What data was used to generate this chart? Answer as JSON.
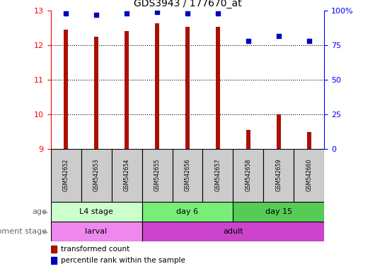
{
  "title": "GDS3943 / 177670_at",
  "samples": [
    "GSM542652",
    "GSM542653",
    "GSM542654",
    "GSM542655",
    "GSM542656",
    "GSM542657",
    "GSM542658",
    "GSM542659",
    "GSM542660"
  ],
  "transformed_counts": [
    12.45,
    12.25,
    12.42,
    12.63,
    12.53,
    12.53,
    9.55,
    10.0,
    9.48
  ],
  "percentile_ranks": [
    98,
    97,
    98,
    99,
    98,
    98,
    78,
    82,
    78
  ],
  "ylim_left": [
    9,
    13
  ],
  "ylim_right": [
    0,
    100
  ],
  "yticks_left": [
    9,
    10,
    11,
    12,
    13
  ],
  "yticks_right": [
    0,
    25,
    50,
    75,
    100
  ],
  "ytick_labels_right": [
    "0",
    "25",
    "50",
    "75",
    "100%"
  ],
  "bar_color": "#aa1100",
  "dot_color": "#0000bb",
  "age_groups": [
    {
      "label": "L4 stage",
      "start": 0,
      "end": 3,
      "color": "#ccffcc"
    },
    {
      "label": "day 6",
      "start": 3,
      "end": 6,
      "color": "#77ee77"
    },
    {
      "label": "day 15",
      "start": 6,
      "end": 9,
      "color": "#55cc55"
    }
  ],
  "dev_groups": [
    {
      "label": "larval",
      "start": 0,
      "end": 3,
      "color": "#ee88ee"
    },
    {
      "label": "adult",
      "start": 3,
      "end": 9,
      "color": "#cc44cc"
    }
  ],
  "legend_labels": [
    "transformed count",
    "percentile rank within the sample"
  ],
  "grid_color": "black",
  "sample_box_color": "#cccccc",
  "bar_width": 0.15
}
